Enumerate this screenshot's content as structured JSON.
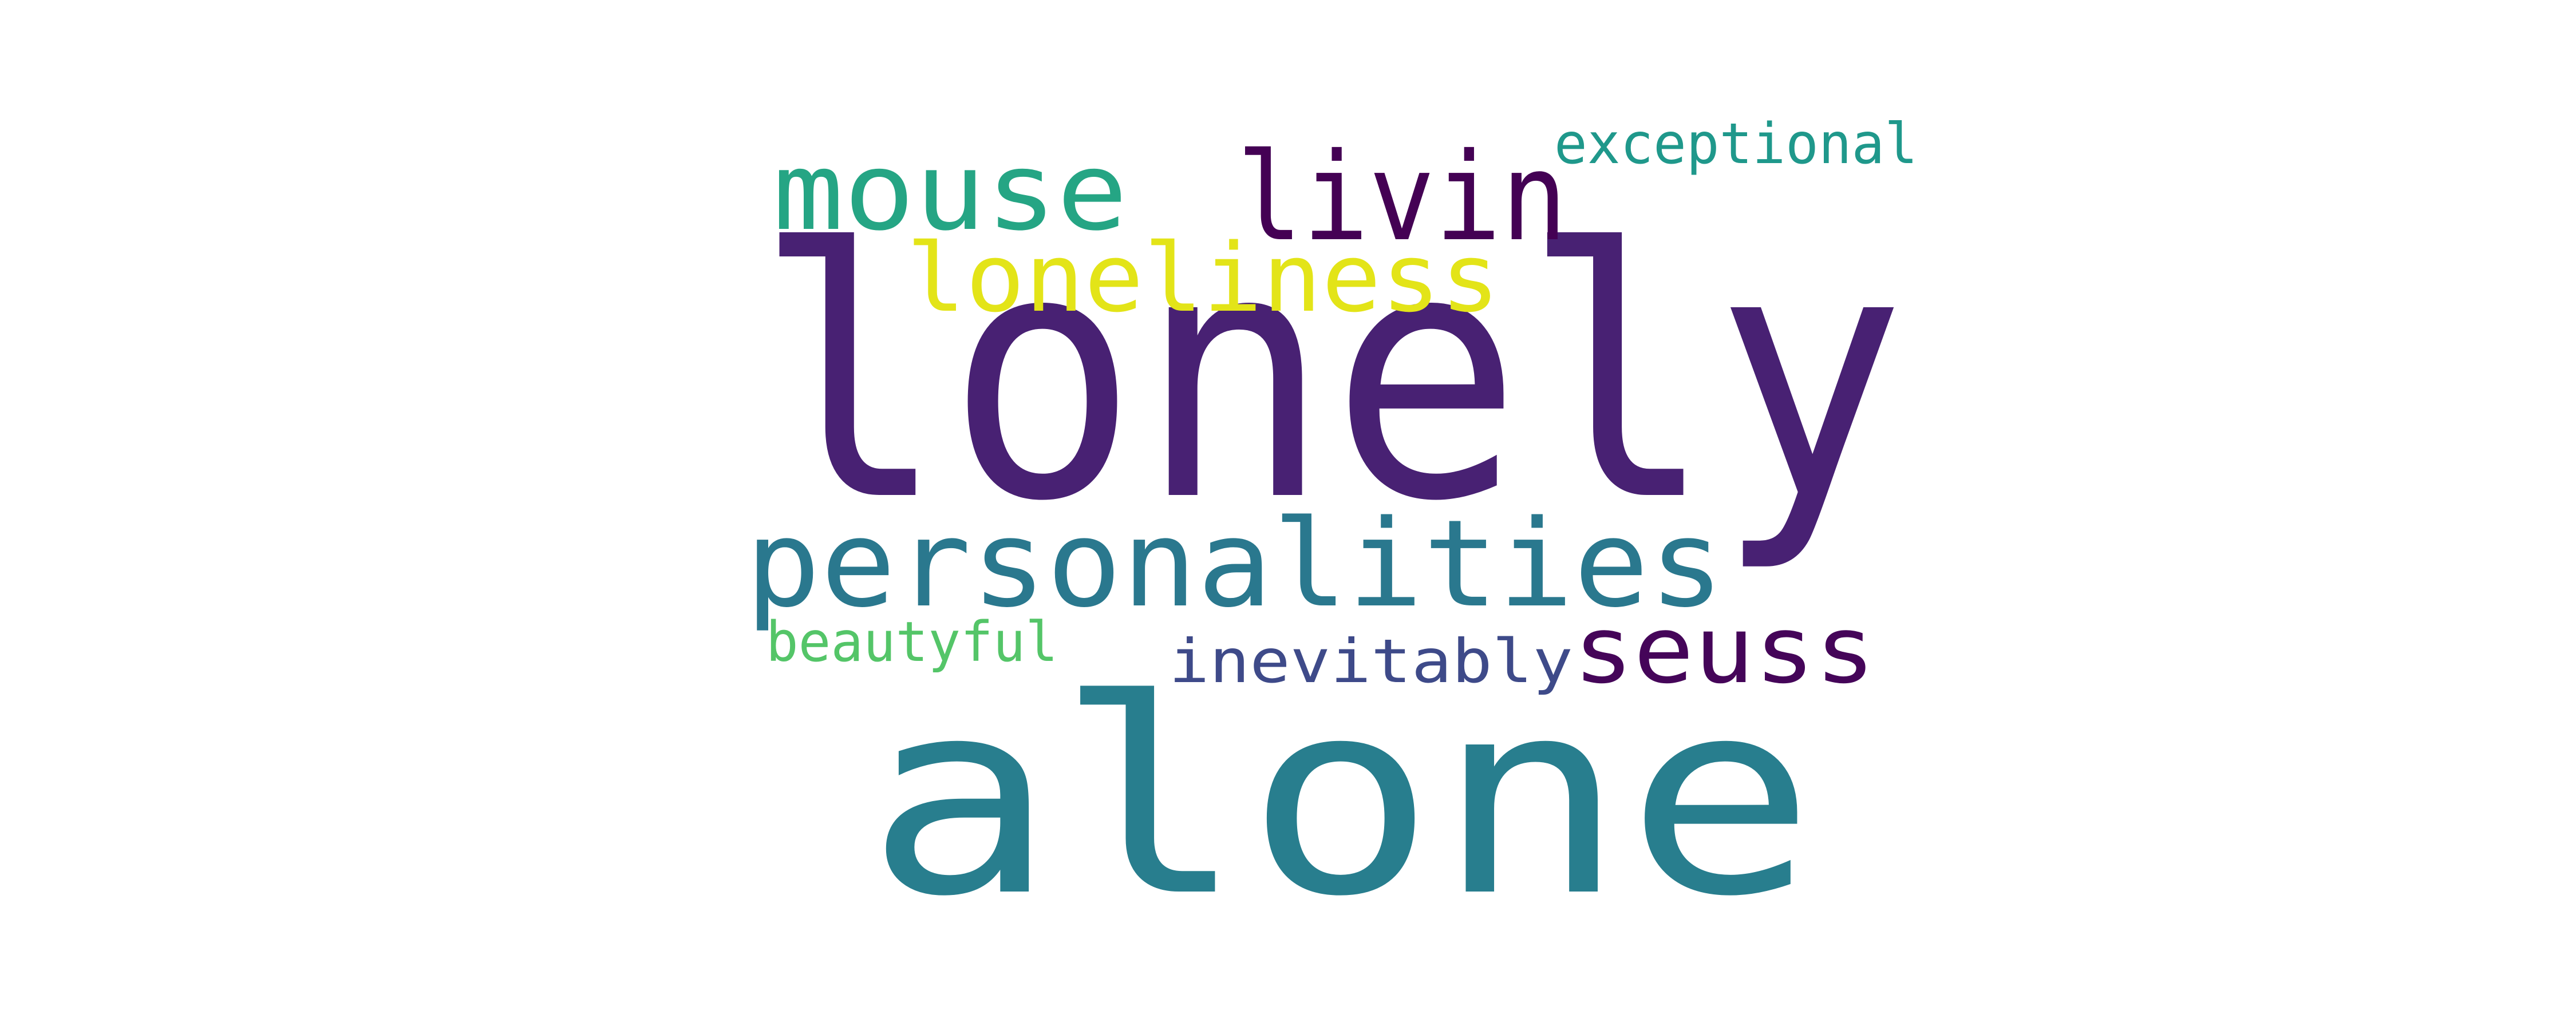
{
  "word_cloud": {
    "words": [
      {
        "id": "lonely",
        "text": "lonely",
        "color": "#482173"
      },
      {
        "id": "alone",
        "text": "alone",
        "color": "#287e8e"
      },
      {
        "id": "personalities",
        "text": "personalities",
        "color": "#2a788e"
      },
      {
        "id": "mouse",
        "text": "mouse",
        "color": "#25a584"
      },
      {
        "id": "livin",
        "text": "livin",
        "color": "#440154"
      },
      {
        "id": "loneliness",
        "text": "loneliness",
        "color": "#e3e418"
      },
      {
        "id": "exceptional",
        "text": "exceptional",
        "color": "#1f988b"
      },
      {
        "id": "seuss",
        "text": "seuss",
        "color": "#450559"
      },
      {
        "id": "inevitably",
        "text": "inevitably",
        "color": "#3e4a89"
      },
      {
        "id": "beautyful",
        "text": "beautyful",
        "color": "#54c568"
      }
    ]
  }
}
